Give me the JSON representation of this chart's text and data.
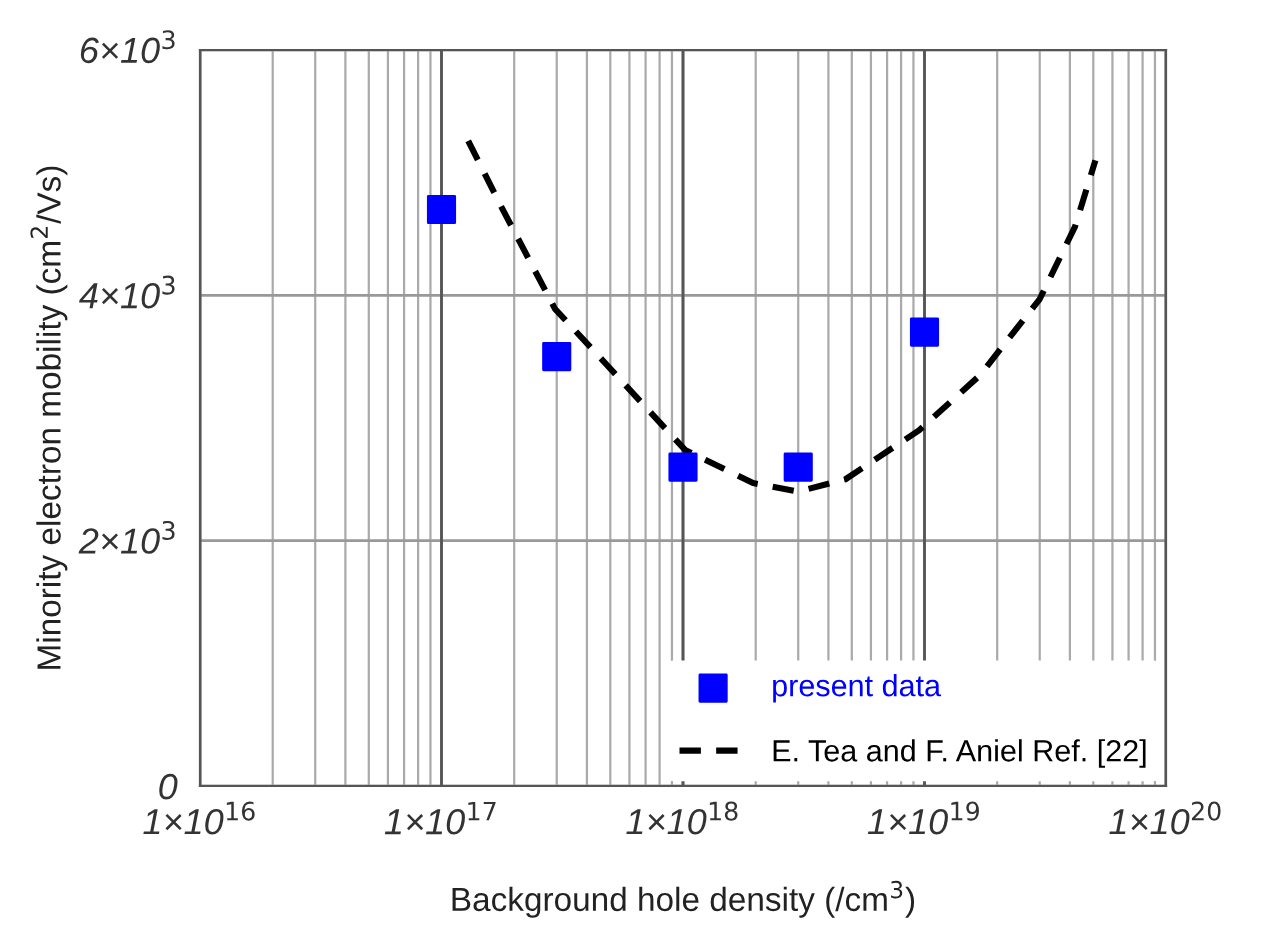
{
  "chart_data": {
    "type": "scatter",
    "xlabel": "Background hole density (/cm$^{3}$)",
    "ylabel": "Minority electron mobility (cm$^{2}$/Vs)",
    "log": "x",
    "xlim": [
      1e+16,
      1e+20
    ],
    "xticks": [
      {
        "value": 1e+16,
        "label": "1×10$^{16}$"
      },
      {
        "value": 1e+17,
        "label": "1×10$^{17}$"
      },
      {
        "value": 1e+18,
        "label": "1×10$^{18}$"
      },
      {
        "value": 1e+19,
        "label": "1×10$^{19}$"
      },
      {
        "value": 1e+20,
        "label": "1×10$^{20}$"
      }
    ],
    "ylim": [
      0,
      6000
    ],
    "yticks": [
      {
        "value": 0,
        "label": "0"
      },
      {
        "value": 2000,
        "label": "2×10$^{3}$"
      },
      {
        "value": 4000,
        "label": "4×10$^{3}$"
      },
      {
        "value": 6000,
        "label": "6×10$^{3}$"
      }
    ],
    "grid": true,
    "legend": "bottom right",
    "series": [
      {
        "name": "present data",
        "marker": "square",
        "color": "#0000ff",
        "x": [
          1e+17,
          3e+17,
          1e+18,
          3e+18,
          1e+19
        ],
        "values": [
          4700,
          3500,
          2600,
          2600,
          3700
        ]
      },
      {
        "name": "E. Tea and F. Aniel Ref. [22]",
        "type": "line",
        "line_style": "dashed",
        "marker": "none",
        "color": "#000000",
        "x": [
          1.29e+17,
          1.76e+17,
          2.95e+17,
          4.8e+17,
          1.02e+18,
          1.95e+18,
          3e+18,
          4.7e+18,
          9.5e+18,
          1.7e+19,
          3e+19,
          4.2e+19,
          5.1e+19
        ],
        "values": [
          5260,
          4730,
          3890,
          3440,
          2740,
          2470,
          2400,
          2500,
          2900,
          3350,
          3970,
          4560,
          5100
        ]
      }
    ]
  }
}
